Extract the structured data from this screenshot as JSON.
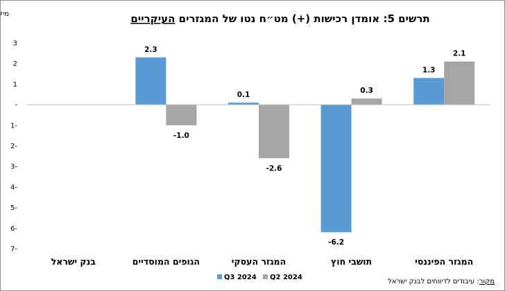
{
  "chart_data": {
    "type": "bar",
    "title_prefix": "תרשים 5: אומדן רכישות (+) מט״ח נטו של המגזרים ",
    "title_emphasis": "העיקריים",
    "unit_label": "מיליארדי $",
    "categories": [
      "המגזר הפיננסי",
      "תושבי חוץ",
      "המגזר העסקי",
      "הגופים המוסדיים",
      "בנק ישראל"
    ],
    "series": [
      {
        "name": "Q3 2024",
        "color": "#5b9bd5",
        "values": [
          1.3,
          -6.2,
          0.1,
          2.3,
          null
        ]
      },
      {
        "name": "Q2 2024",
        "color": "#a5a5a5",
        "values": [
          2.1,
          0.3,
          -2.6,
          -1.0,
          null
        ]
      }
    ],
    "data_labels": [
      [
        "1.3",
        "-6.2",
        "0.1",
        "2.3",
        ""
      ],
      [
        "2.1",
        "0.3",
        "-2.6",
        "-1.0",
        ""
      ]
    ],
    "ylim": [
      -7,
      3
    ],
    "yticks": [
      3,
      2,
      1,
      0,
      -1,
      -2,
      -3,
      -4,
      -5,
      -6,
      -7
    ],
    "ytick_labels": [
      "3",
      "2",
      "1",
      "-",
      "1-",
      "2-",
      "3-",
      "4-",
      "5-",
      "6-",
      "7-"
    ],
    "legend_position": "bottom",
    "grid": false,
    "source_word": "מקור",
    "source_rest": ": עיבודים לדיווחים לבנק ישראל"
  }
}
